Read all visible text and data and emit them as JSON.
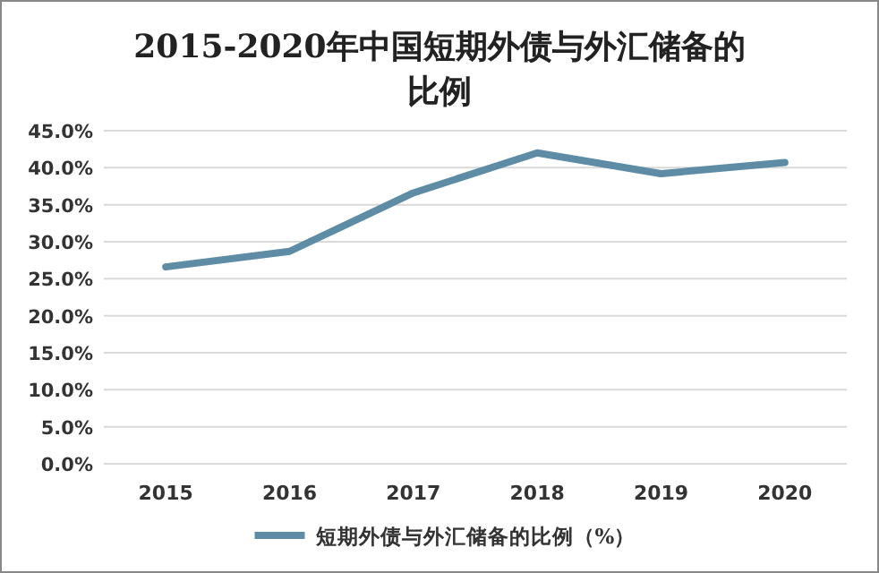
{
  "chart_data": {
    "type": "line",
    "title": "2015-2020年中国短期外债与外汇储备的比例",
    "categories": [
      "2015",
      "2016",
      "2017",
      "2018",
      "2019",
      "2020"
    ],
    "series": [
      {
        "name": "短期外债与外汇储备的比例（%）",
        "color": "#5e8ca5",
        "values": [
          26.6,
          28.7,
          36.6,
          42.0,
          39.2,
          40.7
        ]
      }
    ],
    "ylim": [
      0,
      45
    ],
    "yticks": [
      {
        "value": 0,
        "label": "0.0%"
      },
      {
        "value": 5,
        "label": "5.0%"
      },
      {
        "value": 10,
        "label": "10.0%"
      },
      {
        "value": 15,
        "label": "15.0%"
      },
      {
        "value": 20,
        "label": "20.0%"
      },
      {
        "value": 25,
        "label": "25.0%"
      },
      {
        "value": 30,
        "label": "30.0%"
      },
      {
        "value": 35,
        "label": "35.0%"
      },
      {
        "value": 40,
        "label": "40.0%"
      },
      {
        "value": 45,
        "label": "45.0%"
      }
    ],
    "grid": "y",
    "legend": "bottom",
    "marker": "none",
    "line_style": "solid"
  }
}
